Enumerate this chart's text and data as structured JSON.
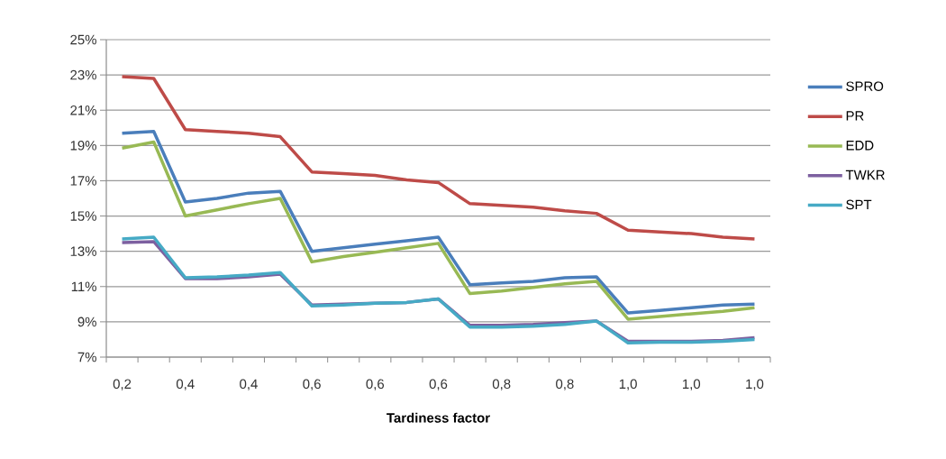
{
  "chart_data": {
    "type": "line",
    "xlabel": "**Tardiness factor**",
    "categories": [
      "0,2",
      null,
      "0,4",
      null,
      "0,4",
      null,
      "0,6",
      null,
      "0,6",
      null,
      "0,6",
      null,
      "0,8",
      null,
      "0,8",
      null,
      "1,0",
      null,
      "1,0",
      null,
      "1,0"
    ],
    "series": [
      {
        "name": "SPRO",
        "color": "#4a7ebb",
        "values": [
          19.7,
          19.8,
          15.8,
          16.0,
          16.3,
          16.4,
          13.0,
          13.2,
          13.4,
          13.6,
          13.8,
          11.1,
          11.2,
          11.3,
          11.5,
          11.55,
          9.5,
          9.65,
          9.8,
          9.95,
          10.0
        ]
      },
      {
        "name": "PR",
        "color": "#be4b48",
        "values": [
          22.9,
          22.8,
          19.9,
          19.8,
          19.7,
          19.5,
          17.5,
          17.4,
          17.3,
          17.05,
          16.9,
          15.7,
          15.6,
          15.5,
          15.3,
          15.15,
          14.2,
          14.1,
          14.0,
          13.8,
          13.7
        ]
      },
      {
        "name": "EDD",
        "color": "#98b954",
        "values": [
          18.85,
          19.2,
          15.0,
          15.35,
          15.7,
          16.0,
          12.4,
          12.7,
          12.95,
          13.2,
          13.45,
          10.6,
          10.75,
          10.95,
          11.15,
          11.3,
          9.15,
          9.3,
          9.45,
          9.6,
          9.8
        ]
      },
      {
        "name": "TWKR",
        "color": "#7d60a0",
        "values": [
          13.5,
          13.55,
          11.45,
          11.45,
          11.55,
          11.7,
          9.95,
          10.0,
          10.05,
          10.1,
          10.3,
          8.8,
          8.8,
          8.85,
          8.95,
          9.05,
          7.9,
          7.9,
          7.9,
          7.95,
          8.1
        ]
      },
      {
        "name": "SPT",
        "color": "#46aac5",
        "values": [
          13.7,
          13.8,
          11.5,
          11.55,
          11.65,
          11.8,
          9.9,
          9.95,
          10.05,
          10.1,
          10.3,
          8.7,
          8.7,
          8.75,
          8.85,
          9.05,
          7.8,
          7.85,
          7.85,
          7.9,
          8.0
        ]
      }
    ],
    "ylim": [
      7,
      25
    ],
    "yticks": [
      {
        "value": 7,
        "label": "7%"
      },
      {
        "value": 9,
        "label": "9%"
      },
      {
        "value": 11,
        "label": "11%"
      },
      {
        "value": 13,
        "label": "13%"
      },
      {
        "value": 15,
        "label": "15%"
      },
      {
        "value": 17,
        "label": "17%"
      },
      {
        "value": 19,
        "label": "19%"
      },
      {
        "value": 21,
        "label": "21%"
      },
      {
        "value": 23,
        "label": "23%"
      },
      {
        "value": 25,
        "label": "25%"
      }
    ],
    "grid": "y",
    "legend": "right",
    "marker": "none",
    "line_style": "solid"
  }
}
